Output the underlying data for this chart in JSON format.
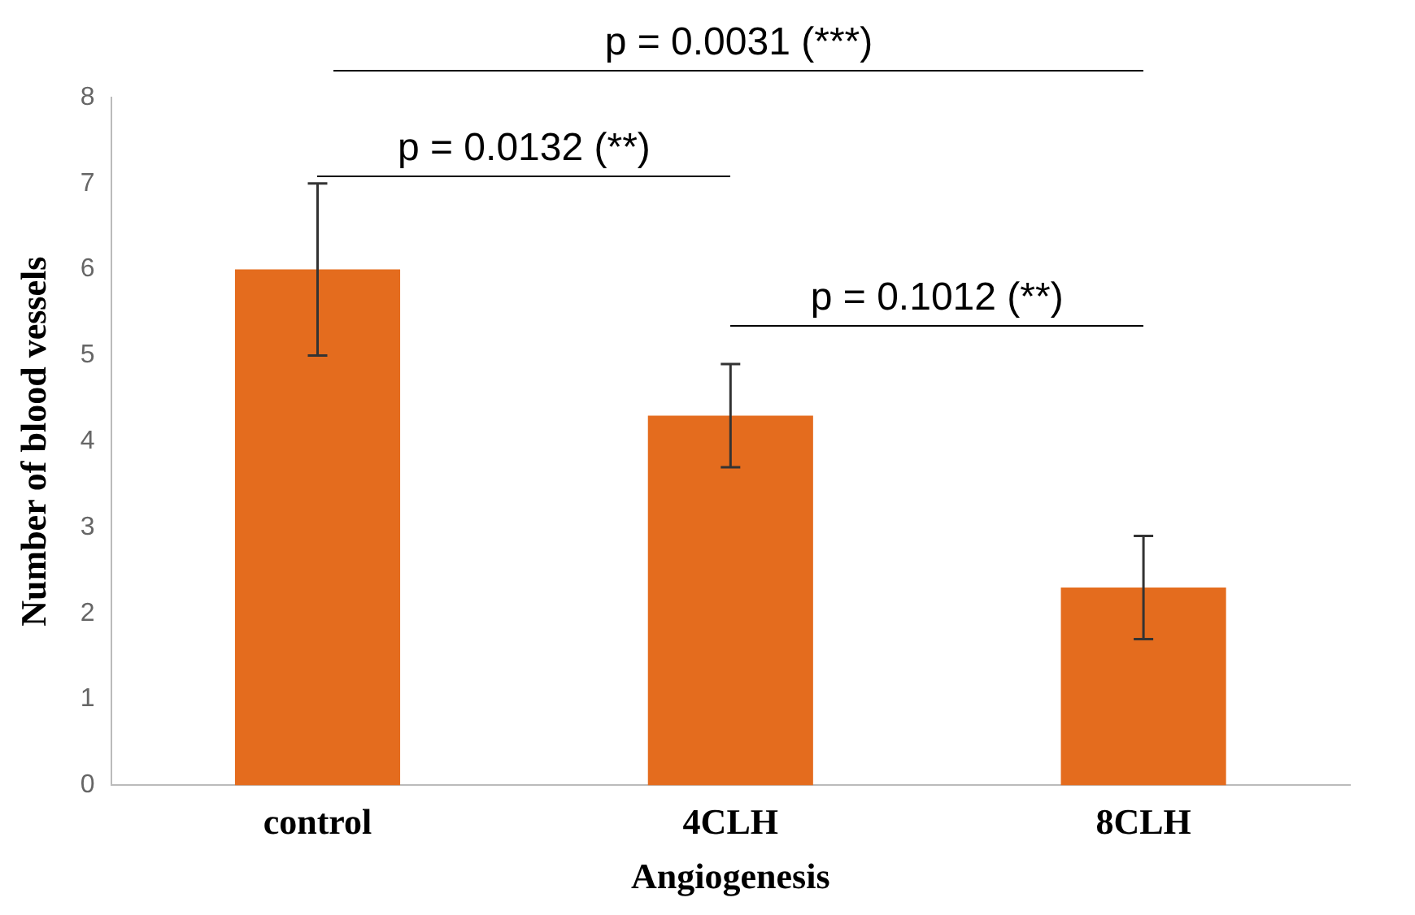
{
  "chart_data": {
    "type": "bar",
    "xlabel": "Angiogenesis",
    "ylabel": "Number of blood vessels",
    "categories": [
      "control",
      "4CLH",
      "8CLH"
    ],
    "values": [
      6,
      4.3,
      2.3
    ],
    "errors": [
      1,
      0.6,
      0.6
    ],
    "color": "#e46c1e",
    "ylim": [
      0,
      8
    ],
    "yticks": [
      0,
      1,
      2,
      3,
      4,
      5,
      6,
      7,
      8
    ],
    "grid": false,
    "annotations": [
      "p = 0.0031 (***)",
      "p = 0.0132 (**)",
      "p = 0.1012 (**)"
    ]
  }
}
